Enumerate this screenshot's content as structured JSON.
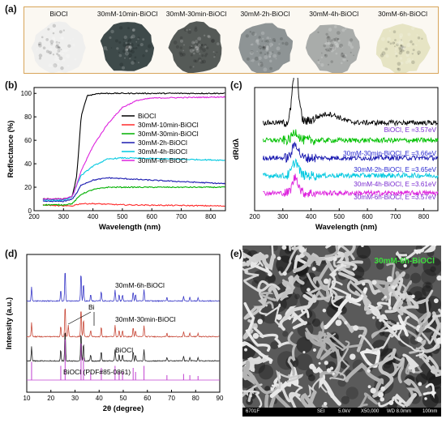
{
  "panels": {
    "a": {
      "label": "(a)",
      "samples": [
        "BiOCl",
        "30mM-10min-BiOCl",
        "30mM-30min-BiOCl",
        "30mM-2h-BiOCl",
        "30mM-4h-BiOCl",
        "30mM-6h-BiOCl"
      ],
      "colors": [
        "#efefee",
        "#3e4a4a",
        "#555a57",
        "#8e9495",
        "#a9acaa",
        "#e6e4c4"
      ]
    },
    "b": {
      "label": "(b)"
    },
    "c": {
      "label": "(c)"
    },
    "d": {
      "label": "(d)"
    },
    "e": {
      "label": "(e)",
      "overlay_label": "30mM-6h-BiOCl",
      "scale_bar": [
        "6701F",
        "SEI",
        "5.0kV",
        "X50,000",
        "WD 8.0mm",
        "100nm"
      ]
    }
  },
  "chart_data": [
    {
      "id": "b",
      "type": "line",
      "xlabel": "Wavelength (nm)",
      "ylabel": "Reflectance (%)",
      "xlim": [
        200,
        850
      ],
      "ylim": [
        0,
        105
      ],
      "xticks": [
        200,
        300,
        400,
        500,
        600,
        700,
        800
      ],
      "yticks": [
        0,
        20,
        40,
        60,
        80,
        100
      ],
      "legend": "center-right",
      "series": [
        {
          "name": "BiOCl",
          "color": "#000000",
          "x": [
            230,
            300,
            330,
            345,
            360,
            380,
            420,
            850
          ],
          "y": [
            10,
            10,
            12,
            30,
            80,
            98,
            100,
            100
          ]
        },
        {
          "name": "30mM-10min-BiOCl",
          "color": "#ff2a2a",
          "x": [
            230,
            300,
            330,
            340,
            360,
            400,
            500,
            850
          ],
          "y": [
            5,
            4,
            4,
            5,
            6,
            6,
            5,
            4
          ]
        },
        {
          "name": "30mM-30min-BiOCl",
          "color": "#00b000",
          "x": [
            230,
            300,
            330,
            345,
            360,
            400,
            450,
            850
          ],
          "y": [
            5,
            5,
            6,
            10,
            14,
            18,
            20,
            20
          ]
        },
        {
          "name": "30mM-2h-BiOCl",
          "color": "#1a1ab0",
          "x": [
            230,
            300,
            330,
            345,
            360,
            400,
            450,
            600,
            850
          ],
          "y": [
            8,
            8,
            10,
            15,
            22,
            26,
            28,
            26,
            23
          ]
        },
        {
          "name": "30mM-4h-BiOCl",
          "color": "#00c8e0",
          "x": [
            230,
            300,
            330,
            345,
            360,
            400,
            450,
            500,
            850
          ],
          "y": [
            9,
            9,
            12,
            22,
            30,
            38,
            44,
            45,
            43
          ]
        },
        {
          "name": "30mM-6h-BiOCl",
          "color": "#dd22dd",
          "x": [
            230,
            300,
            330,
            345,
            360,
            400,
            450,
            500,
            550,
            600,
            850
          ],
          "y": [
            10,
            10,
            12,
            22,
            34,
            55,
            74,
            88,
            94,
            96,
            97
          ]
        }
      ]
    },
    {
      "id": "c",
      "type": "line",
      "xlabel": "Wavelength (nm)",
      "ylabel": "dR/dλ",
      "xlim": [
        200,
        850
      ],
      "xticks": [
        200,
        300,
        400,
        500,
        600,
        700,
        800
      ],
      "annotations": [
        {
          "text": "BiOCl, E =3.57eV",
          "color": "#7a2bd0"
        },
        {
          "text": "30mM-30min-BiOCl, E =3.66eV",
          "color": "#2a2ad0"
        },
        {
          "text": "30mM-2h-BiOCl, E =3.65eV",
          "color": "#2a2ad0"
        },
        {
          "text": "30mM-4h-BiOCl, E =3.61eV",
          "color": "#7a2bd0"
        },
        {
          "text": "30mM-6h-BiOCl, E =3.57eV",
          "color": "#7a2bd0"
        }
      ],
      "series": [
        {
          "color": "#000000",
          "offset": 5,
          "peak": 345,
          "amp": 3.2
        },
        {
          "color": "#00c000",
          "offset": 4,
          "peak": 345,
          "amp": 0.5
        },
        {
          "color": "#1a1ab0",
          "offset": 3,
          "peak": 345,
          "amp": 0.8
        },
        {
          "color": "#00c8e0",
          "offset": 2,
          "peak": 345,
          "amp": 0.8
        },
        {
          "color": "#dd22dd",
          "offset": 1,
          "peak": 345,
          "amp": 0.9
        }
      ]
    },
    {
      "id": "d",
      "type": "line",
      "xlabel": "2θ (degree)",
      "ylabel": "Intensity (a.u.)",
      "xlim": [
        10,
        90
      ],
      "xticks": [
        10,
        20,
        30,
        40,
        50,
        60,
        70,
        80,
        90
      ],
      "annotation": "Bi",
      "labels": [
        "30mM-6h-BiOCl",
        "30mM-30min-BiOCl",
        "BiOCl",
        "BiOCl (PDF#85-0861)"
      ],
      "peaks": [
        {
          "x": 12.0,
          "h": 0.45
        },
        {
          "x": 24.1,
          "h": 0.35
        },
        {
          "x": 25.9,
          "h": 1.0
        },
        {
          "x": 32.5,
          "h": 0.9
        },
        {
          "x": 33.5,
          "h": 0.55
        },
        {
          "x": 36.5,
          "h": 0.2
        },
        {
          "x": 40.9,
          "h": 0.3
        },
        {
          "x": 46.6,
          "h": 0.35
        },
        {
          "x": 48.3,
          "h": 0.2
        },
        {
          "x": 49.7,
          "h": 0.2
        },
        {
          "x": 54.1,
          "h": 0.3
        },
        {
          "x": 55.1,
          "h": 0.2
        },
        {
          "x": 58.6,
          "h": 0.35
        },
        {
          "x": 68.1,
          "h": 0.12
        },
        {
          "x": 75.0,
          "h": 0.15
        },
        {
          "x": 77.6,
          "h": 0.12
        },
        {
          "x": 81.0,
          "h": 0.1
        }
      ],
      "series": [
        {
          "color": "#3a3ac8",
          "offset": 3
        },
        {
          "color": "#c84a3a",
          "offset": 2
        },
        {
          "color": "#222222",
          "offset": 1
        },
        {
          "color": "#c040d0",
          "offset": 0
        }
      ]
    }
  ]
}
